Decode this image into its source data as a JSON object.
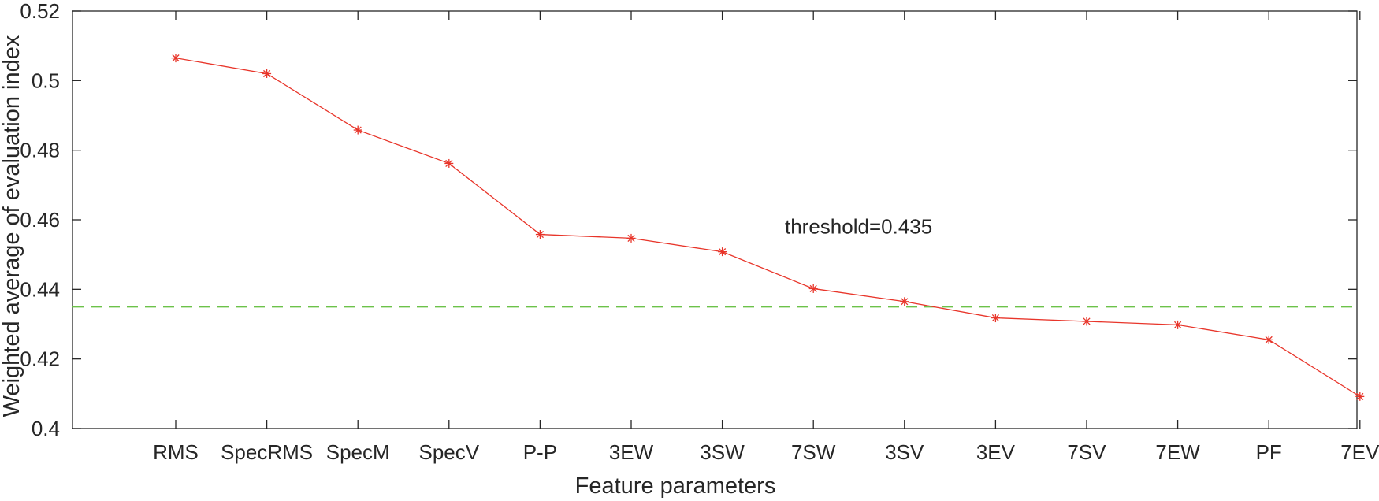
{
  "chart_data": {
    "type": "line",
    "title": "",
    "xlabel": "Feature parameters",
    "ylabel": "Weighted average of evaluation index",
    "categories": [
      "RMS",
      "SpecRMS",
      "SpecM",
      "SpecV",
      "P-P",
      "3EW",
      "3SW",
      "7SW",
      "3SV",
      "3EV",
      "7SV",
      "7EW",
      "PF",
      "7EV"
    ],
    "series": [
      {
        "values": [
          0.5065,
          0.502,
          0.4858,
          0.4762,
          0.4558,
          0.4547,
          0.4508,
          0.4402,
          0.4365,
          0.4318,
          0.4308,
          0.4298,
          0.4255,
          0.4092
        ],
        "color": "#e8352a",
        "marker": "asterisk"
      }
    ],
    "ylim": [
      0.4,
      0.52
    ],
    "yticks": [
      "0.4",
      "0.42",
      "0.44",
      "0.46",
      "0.48",
      "0.5",
      "0.52"
    ],
    "threshold": {
      "value": 0.435,
      "color": "#6cc24a",
      "style": "dashed",
      "label": "threshold=0.435"
    },
    "grid": false,
    "box": true
  }
}
